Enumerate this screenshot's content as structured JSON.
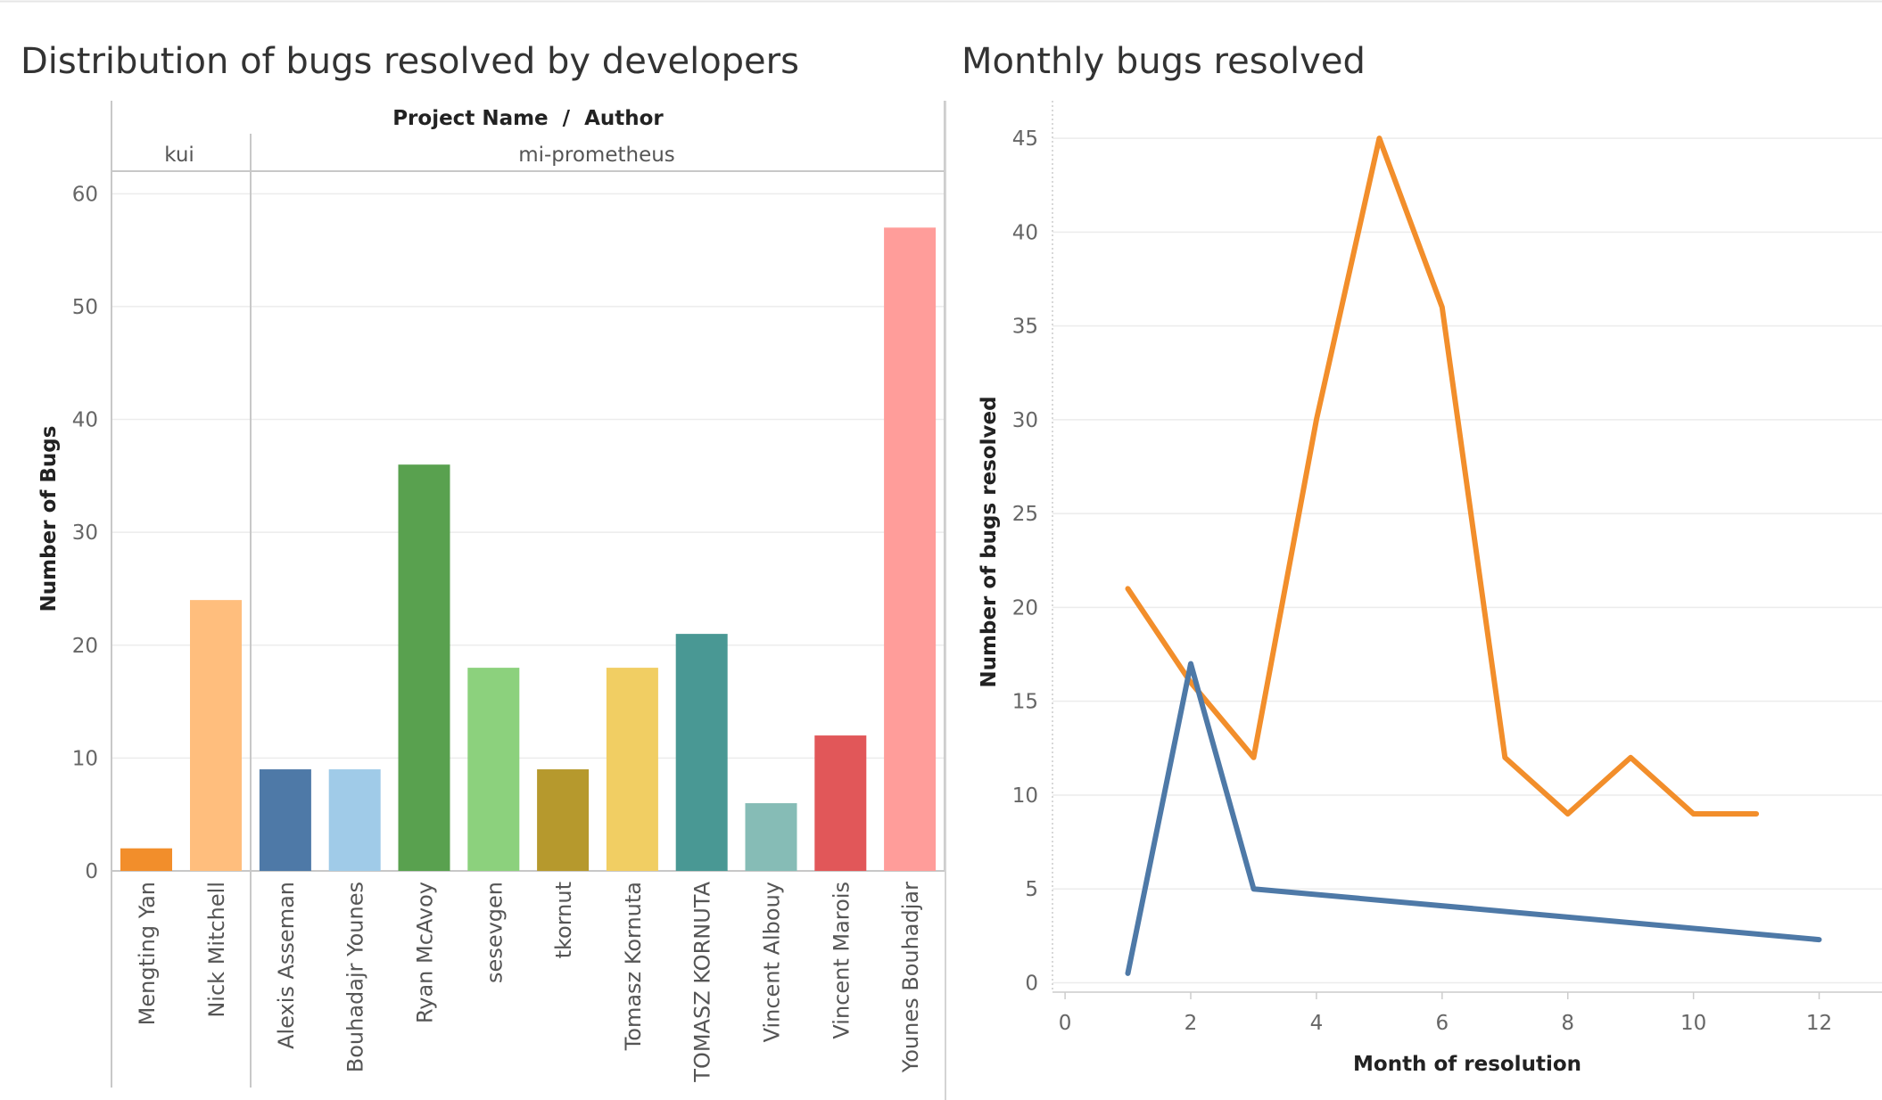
{
  "chart_data": [
    {
      "type": "bar",
      "title": "Distribution of bugs resolved by developers",
      "header": "Project Name  /  Author",
      "ylabel": "Number of Bugs",
      "ylim": [
        0,
        62
      ],
      "yticks": [
        0,
        10,
        20,
        30,
        40,
        50,
        60
      ],
      "grid": true,
      "groups": [
        {
          "name": "kui",
          "authors": [
            "Mengting Yan",
            "Nick Mitchell"
          ],
          "values": [
            2,
            24
          ],
          "colors": [
            "#F28E2B",
            "#FFBE7D"
          ]
        },
        {
          "name": "mi-prometheus",
          "authors": [
            "Alexis Asseman",
            "Bouhadajr Younes",
            "Ryan McAvoy",
            "sesevgen",
            "tkornut",
            "Tomasz Kornuta",
            "TOMASZ KORNUTA",
            "Vincent Albouy",
            "Vincent Marois",
            "Younes Bouhadjar"
          ],
          "values": [
            9,
            9,
            36,
            18,
            9,
            18,
            21,
            6,
            12,
            57
          ],
          "colors": [
            "#4E79A7",
            "#A0CBE8",
            "#59A14F",
            "#8CD17D",
            "#B6992D",
            "#F1CE63",
            "#499894",
            "#86BCB6",
            "#E15759",
            "#FF9D9A"
          ]
        }
      ]
    },
    {
      "type": "line",
      "title": "Monthly bugs resolved",
      "xlabel": "Month of resolution",
      "ylabel": "Number of bugs resolved",
      "xlim": [
        -0.2,
        13
      ],
      "ylim": [
        -0.5,
        47
      ],
      "xticks": [
        0,
        2,
        4,
        6,
        8,
        10,
        12
      ],
      "yticks": [
        0,
        5,
        10,
        15,
        20,
        25,
        30,
        35,
        40,
        45
      ],
      "grid": true,
      "series": [
        {
          "color": "#F28E2B",
          "x": [
            1,
            2,
            3,
            4,
            5,
            6,
            7,
            8,
            9,
            10,
            11
          ],
          "y": [
            21,
            16,
            12,
            30,
            45,
            36,
            12,
            9,
            12,
            9,
            9
          ]
        },
        {
          "color": "#4E79A7",
          "x": [
            1,
            2,
            3,
            12
          ],
          "y": [
            0.5,
            17,
            5,
            2.3
          ]
        }
      ]
    }
  ]
}
